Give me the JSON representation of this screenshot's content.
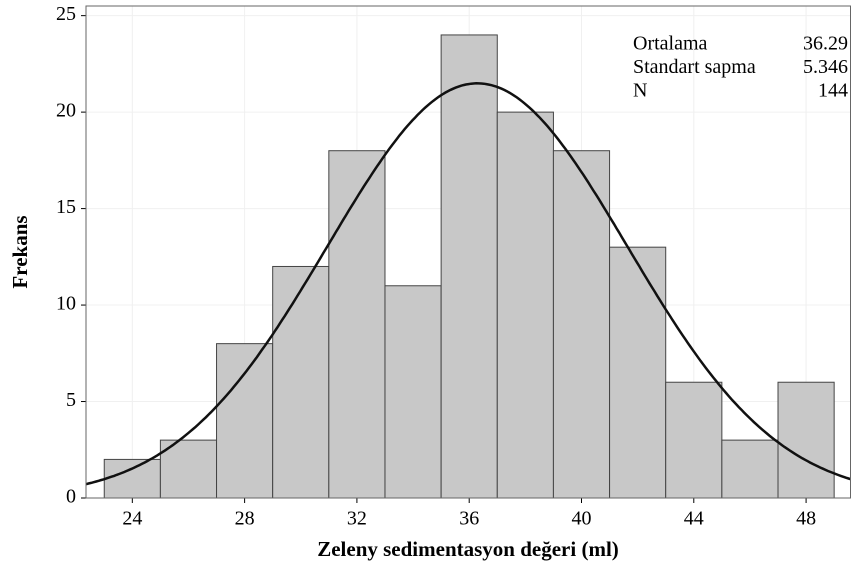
{
  "chart_data": {
    "type": "histogram",
    "xlabel": "Zeleny sedimentasyon değeri (ml)",
    "ylabel": "Frekans",
    "bins": [
      23,
      25,
      27,
      29,
      31,
      33,
      35,
      37,
      39,
      41,
      43,
      45,
      47,
      49
    ],
    "values": [
      2,
      3,
      8,
      12,
      18,
      11,
      24,
      20,
      18,
      13,
      6,
      3,
      6
    ],
    "color": "#c8c8c8",
    "xlim": [
      22.35,
      49.6
    ],
    "xticks": [
      24,
      28,
      32,
      36,
      40,
      44,
      48
    ],
    "ylim": [
      0,
      25.5
    ],
    "yticks": [
      0,
      5,
      10,
      15,
      20,
      25
    ],
    "grid": true,
    "stats": [
      {
        "label": "Ortalama",
        "value": 36.29
      },
      {
        "label": "Standart sapma",
        "value": 5.346
      },
      {
        "label": "N",
        "value": 144
      }
    ]
  }
}
